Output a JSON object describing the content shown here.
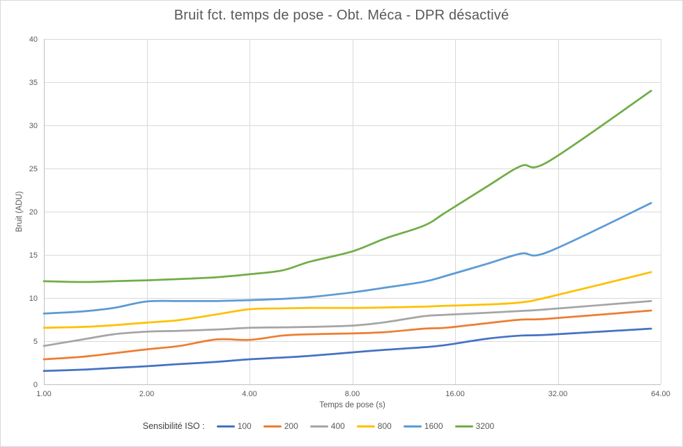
{
  "chart_data": {
    "type": "line",
    "title": "Bruit fct. temps de pose - Obt. Méca - DPR désactivé",
    "xlabel": "Temps de pose (s)",
    "ylabel": "Bruit (ADU)",
    "legend_title": "Sensibilité ISO :",
    "legend_position": "bottom",
    "grid": true,
    "x_scale": "log2",
    "xlim": [
      1,
      64
    ],
    "ylim": [
      0,
      40
    ],
    "x_ticks": [
      "1.00",
      "2.00",
      "4.00",
      "8.00",
      "16.00",
      "32.00",
      "64.00"
    ],
    "x_tick_values": [
      1,
      2,
      4,
      8,
      16,
      32,
      64
    ],
    "y_ticks": [
      0,
      5,
      10,
      15,
      20,
      25,
      30,
      35,
      40
    ],
    "x": [
      1,
      1.3,
      1.6,
      2,
      2.5,
      3.2,
      4,
      5,
      6,
      8,
      10,
      13,
      15,
      20,
      25,
      30,
      60
    ],
    "series": [
      {
        "name": "100",
        "color": "#4472C4",
        "values": [
          1.55,
          1.7,
          1.9,
          2.1,
          2.35,
          2.6,
          2.9,
          3.1,
          3.3,
          3.7,
          4.0,
          4.3,
          4.55,
          5.3,
          5.65,
          5.75,
          6.45
        ]
      },
      {
        "name": "200",
        "color": "#ED7D31",
        "values": [
          2.9,
          3.2,
          3.6,
          4.05,
          4.45,
          5.2,
          5.15,
          5.65,
          5.8,
          5.9,
          6.05,
          6.45,
          6.55,
          7.1,
          7.5,
          7.6,
          8.55
        ]
      },
      {
        "name": "400",
        "color": "#A5A5A5",
        "values": [
          4.45,
          5.2,
          5.8,
          6.1,
          6.2,
          6.35,
          6.55,
          6.6,
          6.65,
          6.8,
          7.2,
          7.9,
          8.05,
          8.3,
          8.5,
          8.7,
          9.65
        ]
      },
      {
        "name": "800",
        "color": "#FFC000",
        "values": [
          6.55,
          6.65,
          6.85,
          7.15,
          7.45,
          8.1,
          8.7,
          8.8,
          8.85,
          8.85,
          8.9,
          9.0,
          9.1,
          9.25,
          9.5,
          10.1,
          13.0
        ]
      },
      {
        "name": "1600",
        "color": "#5B9BD5",
        "values": [
          8.2,
          8.45,
          8.85,
          9.6,
          9.65,
          9.65,
          9.75,
          9.9,
          10.1,
          10.65,
          11.2,
          11.9,
          12.55,
          14.0,
          15.15,
          15.35,
          21.0
        ]
      },
      {
        "name": "3200",
        "color": "#70AD47",
        "values": [
          11.95,
          11.85,
          11.95,
          12.05,
          12.2,
          12.4,
          12.75,
          13.2,
          14.2,
          15.4,
          16.9,
          18.4,
          19.9,
          23.0,
          25.3,
          25.8,
          34.0
        ]
      }
    ],
    "colors": {
      "background": "#FFFFFF",
      "gridline": "#D9D9D9",
      "axis_line": "#BFBFBF",
      "text": "#595959",
      "legend_title_text": "#404040"
    }
  }
}
